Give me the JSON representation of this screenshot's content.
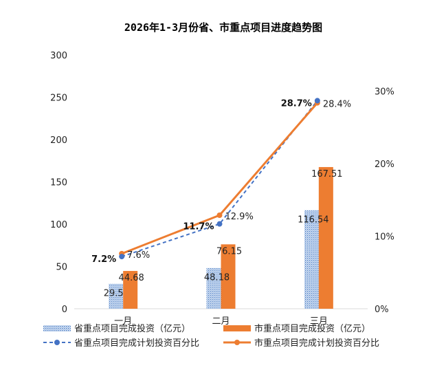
{
  "chart_data": {
    "type": "bar",
    "title": "2026年1-3月份省、市重点项目进度趋势图",
    "categories": [
      "一月",
      "二月",
      "三月"
    ],
    "y_left": {
      "min": 0,
      "max": 300,
      "ticks": [
        0,
        50,
        100,
        150,
        200,
        250,
        300
      ]
    },
    "y_right": {
      "min": 0,
      "max": 0.35,
      "ticks": [
        0,
        0.1,
        0.2,
        0.3
      ],
      "tick_labels": [
        "0%",
        "10%",
        "20%",
        "30%"
      ]
    },
    "bar_series": [
      {
        "name": "省重点项目完成投资（亿元）",
        "values": [
          29.5,
          48.18,
          116.54
        ],
        "labels": [
          "29.5",
          "48.18",
          "116.54"
        ],
        "color": "#4f7ec4",
        "pattern": "dotted"
      },
      {
        "name": "市重点项目完成投资（亿元）",
        "values": [
          44.68,
          76.15,
          167.51
        ],
        "labels": [
          "44.68",
          "76.15",
          "167.51"
        ],
        "color": "#ed7d31",
        "pattern": "solid"
      }
    ],
    "line_series": [
      {
        "name": "省重点项目完成计划投资百分比",
        "values": [
          0.072,
          0.117,
          0.287
        ],
        "labels": [
          "7.2%",
          "11.7%",
          "28.7%"
        ],
        "color": "#4472c4",
        "dash": true
      },
      {
        "name": "市重点项目完成计划投资百分比",
        "values": [
          0.076,
          0.129,
          0.284
        ],
        "labels": [
          "7.6%",
          "12.9%",
          "28.4%"
        ],
        "color": "#ed7d31",
        "dash": false
      }
    ],
    "legend_position": "bottom",
    "grid": false
  }
}
